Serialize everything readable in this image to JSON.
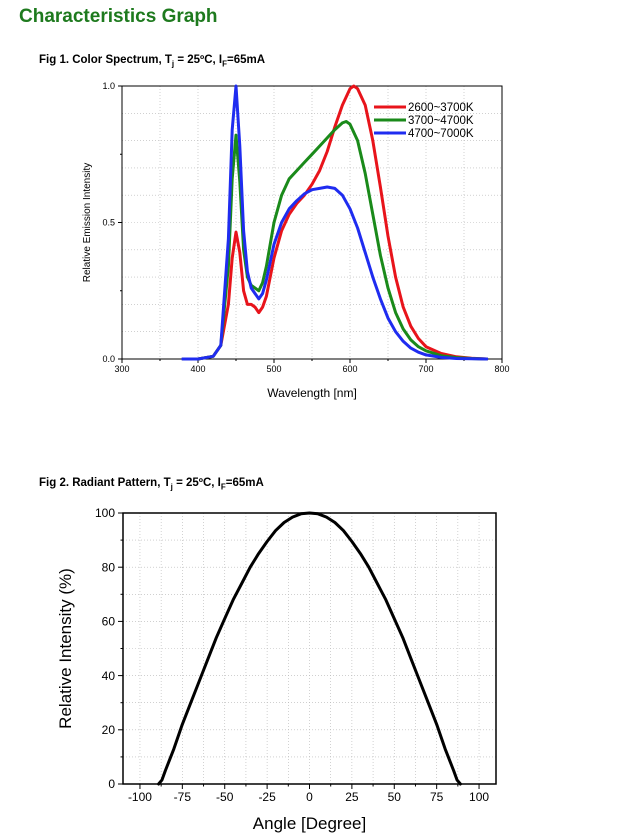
{
  "page": {
    "title": "Characteristics Graph"
  },
  "figures": {
    "fig1": {
      "caption_prefix": "Fig 1. Color Spectrum, T",
      "caption_sub1": "j",
      "caption_mid": " = 25ºC,  I",
      "caption_sub2": "F",
      "caption_suffix": "=65mA"
    },
    "fig2": {
      "caption_prefix": "Fig 2. Radiant Pattern, T",
      "caption_sub1": "j",
      "caption_mid": " = 25ºC,  I",
      "caption_sub2": "F",
      "caption_suffix": "=65mA"
    }
  },
  "chart_data": [
    {
      "type": "line",
      "title": "Fig 1. Color Spectrum",
      "xlabel": "Wavelength [nm]",
      "ylabel": "Relative Emission Intensity",
      "xlim": [
        300,
        800
      ],
      "ylim": [
        0,
        1.0
      ],
      "x_ticks": [
        300,
        400,
        500,
        600,
        700,
        800
      ],
      "y_ticks": [
        0.0,
        0.5,
        1.0
      ],
      "x_tick_labels": [
        "300",
        "400",
        "500",
        "600",
        "700",
        "800"
      ],
      "y_tick_labels": [
        "0.0",
        "0.5",
        "1.0"
      ],
      "legend_position": "top-right",
      "grid": true,
      "series": [
        {
          "name": "2600~3700K",
          "color": "#e8141b",
          "x": [
            380,
            400,
            420,
            430,
            440,
            445,
            450,
            455,
            460,
            465,
            470,
            475,
            480,
            485,
            490,
            500,
            510,
            520,
            530,
            540,
            550,
            560,
            570,
            580,
            590,
            600,
            605,
            610,
            620,
            630,
            640,
            650,
            660,
            670,
            680,
            690,
            700,
            720,
            740,
            760,
            780
          ],
          "y": [
            0,
            0,
            0.01,
            0.05,
            0.2,
            0.37,
            0.465,
            0.39,
            0.25,
            0.2,
            0.2,
            0.19,
            0.17,
            0.19,
            0.23,
            0.37,
            0.47,
            0.53,
            0.57,
            0.6,
            0.64,
            0.69,
            0.76,
            0.85,
            0.93,
            0.99,
            1.0,
            0.99,
            0.93,
            0.8,
            0.63,
            0.45,
            0.3,
            0.19,
            0.12,
            0.075,
            0.045,
            0.02,
            0.008,
            0.003,
            0
          ]
        },
        {
          "name": "3700~4700K",
          "color": "#1a8a1a",
          "x": [
            380,
            400,
            420,
            430,
            440,
            445,
            450,
            455,
            460,
            465,
            470,
            475,
            480,
            485,
            490,
            500,
            510,
            520,
            530,
            540,
            550,
            560,
            570,
            580,
            590,
            595,
            600,
            610,
            620,
            630,
            640,
            650,
            660,
            670,
            680,
            690,
            700,
            720,
            740,
            760,
            780
          ],
          "y": [
            0,
            0,
            0.01,
            0.05,
            0.34,
            0.66,
            0.82,
            0.65,
            0.4,
            0.3,
            0.27,
            0.26,
            0.25,
            0.28,
            0.34,
            0.5,
            0.6,
            0.66,
            0.69,
            0.72,
            0.75,
            0.78,
            0.81,
            0.84,
            0.865,
            0.87,
            0.86,
            0.8,
            0.68,
            0.53,
            0.38,
            0.26,
            0.17,
            0.11,
            0.07,
            0.045,
            0.03,
            0.012,
            0.005,
            0.002,
            0
          ]
        },
        {
          "name": "4700~7000K",
          "color": "#1f2cf0",
          "x": [
            380,
            400,
            420,
            430,
            440,
            445,
            450,
            455,
            460,
            465,
            470,
            475,
            480,
            485,
            490,
            500,
            510,
            520,
            530,
            540,
            550,
            560,
            570,
            580,
            590,
            600,
            610,
            620,
            630,
            640,
            650,
            660,
            670,
            680,
            690,
            700,
            720,
            740,
            760,
            780
          ],
          "y": [
            0,
            0,
            0.01,
            0.05,
            0.44,
            0.84,
            1.0,
            0.78,
            0.47,
            0.32,
            0.26,
            0.24,
            0.22,
            0.24,
            0.29,
            0.42,
            0.5,
            0.55,
            0.58,
            0.605,
            0.62,
            0.625,
            0.63,
            0.625,
            0.6,
            0.55,
            0.48,
            0.39,
            0.3,
            0.22,
            0.15,
            0.1,
            0.065,
            0.04,
            0.025,
            0.015,
            0.006,
            0.002,
            0.001,
            0
          ]
        }
      ]
    },
    {
      "type": "line",
      "title": "Fig 2. Radiant Pattern",
      "xlabel": "Angle [Degree]",
      "ylabel": "Relative Intensity (%)",
      "xlim": [
        -110,
        110
      ],
      "ylim": [
        0,
        100
      ],
      "x_ticks": [
        -100,
        -75,
        -50,
        -25,
        0,
        25,
        50,
        75,
        100
      ],
      "y_ticks": [
        0,
        20,
        40,
        60,
        80,
        100
      ],
      "x_tick_labels": [
        "-100",
        "-75",
        "-50",
        "-25",
        "0",
        "25",
        "50",
        "75",
        "100"
      ],
      "y_tick_labels": [
        "0",
        "20",
        "40",
        "60",
        "80",
        "100"
      ],
      "grid": true,
      "series": [
        {
          "name": "Radiant Pattern",
          "color": "#000000",
          "x": [
            -89,
            -87,
            -85,
            -80,
            -75,
            -70,
            -65,
            -60,
            -55,
            -50,
            -45,
            -40,
            -35,
            -30,
            -25,
            -20,
            -15,
            -10,
            -5,
            0,
            5,
            10,
            15,
            20,
            25,
            30,
            35,
            40,
            45,
            50,
            55,
            60,
            65,
            70,
            75,
            80,
            85,
            87,
            89
          ],
          "y": [
            0,
            1.5,
            5,
            13,
            22,
            30,
            38,
            46,
            54,
            61,
            68,
            74,
            80,
            85,
            89.5,
            93.5,
            96.5,
            98.5,
            99.7,
            100,
            99.7,
            98.5,
            96.5,
            93.5,
            89.5,
            85,
            80,
            74,
            68,
            61,
            54,
            46,
            38,
            30,
            22,
            13,
            5,
            1.5,
            0
          ]
        }
      ]
    }
  ]
}
